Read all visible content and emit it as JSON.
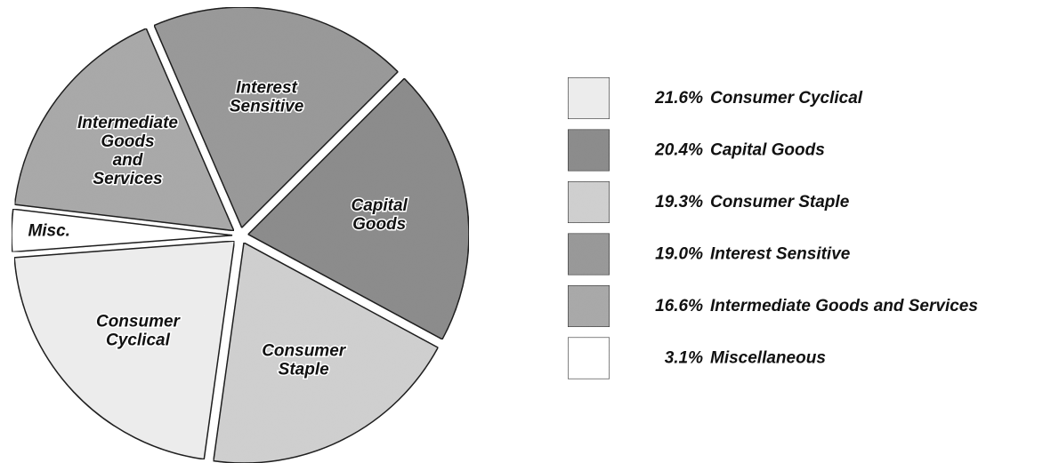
{
  "chart_data": {
    "type": "pie",
    "categories": [
      "Consumer Cyclical",
      "Capital Goods",
      "Consumer Staple",
      "Interest Sensitive",
      "Intermediate Goods and Services",
      "Miscellaneous"
    ],
    "values": [
      21.6,
      20.4,
      19.3,
      19.0,
      16.6,
      3.1
    ],
    "value_labels": [
      "21.6%",
      "20.4%",
      "19.3%",
      "19.0%",
      "16.6%",
      "3.1%"
    ],
    "slice_labels": [
      [
        "Consumer",
        "Cyclical"
      ],
      [
        "Capital",
        "Goods"
      ],
      [
        "Consumer",
        "Staple"
      ],
      [
        "Interest",
        "Sensitive"
      ],
      [
        "Intermediate",
        "Goods",
        "and",
        "Services"
      ],
      [
        "Misc."
      ]
    ],
    "colors": [
      "#ececec",
      "#8c8c8c",
      "#cfcfcf",
      "#999999",
      "#a9a9a9",
      "#ffffff"
    ],
    "legend": "right"
  }
}
